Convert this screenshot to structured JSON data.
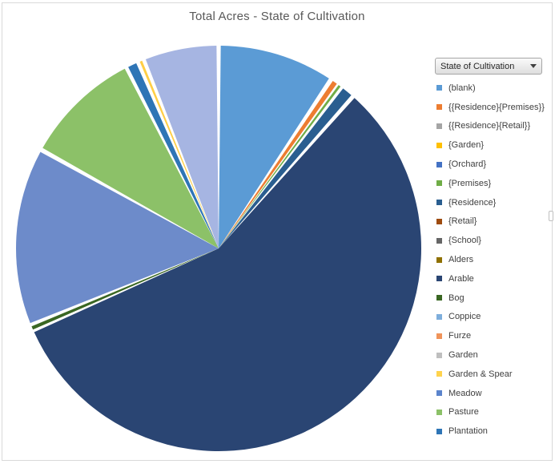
{
  "chart": {
    "title": "Total Acres - State of Cultivation",
    "title_color": "#595959"
  },
  "filter_button": {
    "label": "State of Cultivation"
  },
  "legend": {
    "items": [
      {
        "label": "(blank)",
        "color": "#5B9BD5"
      },
      {
        "label": "{{Residence}{Premises}}",
        "color": "#ED7D31"
      },
      {
        "label": "{{Residence}{Retail}}",
        "color": "#A5A5A5"
      },
      {
        "label": "{Garden}",
        "color": "#FFC000"
      },
      {
        "label": "{Orchard}",
        "color": "#4472C4"
      },
      {
        "label": "{Premises}",
        "color": "#70AD47"
      },
      {
        "label": "{Residence}",
        "color": "#2A5E90"
      },
      {
        "label": "{Retail}",
        "color": "#9E4B0F"
      },
      {
        "label": "{School}",
        "color": "#666666"
      },
      {
        "label": "Alders",
        "color": "#8F7000"
      },
      {
        "label": "Arable",
        "color": "#2A4573"
      },
      {
        "label": "Bog",
        "color": "#3A6723"
      },
      {
        "label": "Coppice",
        "color": "#7EAEDC"
      },
      {
        "label": "Furze",
        "color": "#F0945A"
      },
      {
        "label": "Garden",
        "color": "#BFBFBF"
      },
      {
        "label": "Garden & Spear",
        "color": "#FFD34D"
      },
      {
        "label": "Meadow",
        "color": "#5B84CC"
      },
      {
        "label": "Pasture",
        "color": "#8CC168"
      },
      {
        "label": "Plantation",
        "color": "#2E75B6"
      }
    ]
  },
  "chart_data": {
    "type": "pie",
    "title": "Total Acres - State of Cultivation",
    "legend_title": "State of Cultivation",
    "legend_position": "right",
    "categories": [
      "(blank)",
      "{{Residence}{Premises}}",
      "{{Residence}{Retail}}",
      "{Garden}",
      "{Orchard}",
      "{Premises}",
      "{Residence}",
      "{Retail}",
      "{School}",
      "Alders",
      "Arable",
      "Bog",
      "Coppice",
      "Furze",
      "Garden",
      "Garden & Spear",
      "Meadow",
      "Pasture",
      "Plantation"
    ],
    "slices": [
      {
        "label": "(blank)",
        "percent": 9.0,
        "start_deg": 0.6,
        "end_deg": 33.0,
        "color": "#5B9BD5"
      },
      {
        "label": "{{Residence}{Premises}}",
        "percent": 0.4,
        "start_deg": 34.3,
        "end_deg": 35.7,
        "color": "#ED7D31"
      },
      {
        "label": "{Premises}",
        "percent": 0.2,
        "start_deg": 36.3,
        "end_deg": 37.0,
        "color": "#70AD47"
      },
      {
        "label": "{Residence}",
        "percent": 0.8,
        "start_deg": 37.9,
        "end_deg": 40.9,
        "color": "#2A5E90"
      },
      {
        "label": "Arable",
        "percent": 56.5,
        "start_deg": 42.1,
        "end_deg": 245.6,
        "color": "#2A4573"
      },
      {
        "label": "Bog",
        "percent": 0.3,
        "start_deg": 246.4,
        "end_deg": 247.4,
        "color": "#3A6723"
      },
      {
        "label": "Coppice",
        "percent": 13.9,
        "start_deg": 248.4,
        "end_deg": 298.4,
        "color": "#6D8BCA"
      },
      {
        "label": "Pasture",
        "percent": 9.1,
        "start_deg": 299.7,
        "end_deg": 332.4,
        "color": "#8CC168"
      },
      {
        "label": "Plantation",
        "percent": 0.7,
        "start_deg": 333.5,
        "end_deg": 336.0,
        "color": "#2E75B6"
      },
      {
        "label": "Garden & Spear",
        "percent": 0.2,
        "start_deg": 337.1,
        "end_deg": 337.8,
        "color": "#FFCE45"
      },
      {
        "label": "Meadow",
        "percent": 5.7,
        "start_deg": 338.9,
        "end_deg": 359.4,
        "color": "#A6B5E2"
      }
    ]
  }
}
